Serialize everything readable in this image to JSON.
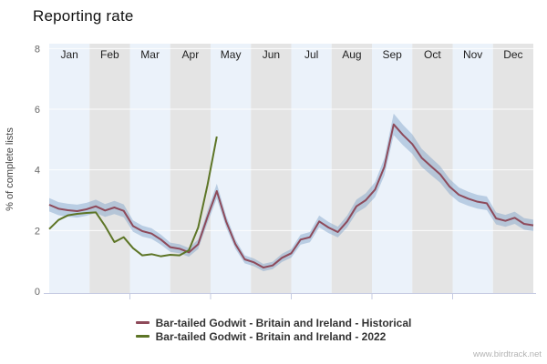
{
  "title": "Reporting rate",
  "legend": {
    "items": [
      {
        "label": "Bar-tailed Godwit - Britain and Ireland - Historical",
        "color": "#8e4a5a"
      },
      {
        "label": "Bar-tailed Godwit - Britain and Ireland - 2022",
        "color": "#5d7526"
      }
    ]
  },
  "watermark": "www.birdtrack.net",
  "colors": {
    "band_blue": "#ebf2fa",
    "band_gray": "#e4e4e4",
    "gridline": "rgba(255,255,255,0.85)",
    "axis_line": "#c5cbe2",
    "historical_line": "#8e4a5a",
    "confidence_band": "rgba(125,160,200,0.45)",
    "line_2022": "#5d7526"
  },
  "chart_data": {
    "type": "line",
    "title": "Reporting rate",
    "xlabel": "",
    "ylabel": "% of complete lists",
    "ylim": [
      0,
      8
    ],
    "yticks": [
      0,
      2,
      4,
      6,
      8
    ],
    "months": [
      "Jan",
      "Feb",
      "Mar",
      "Apr",
      "May",
      "Jun",
      "Jul",
      "Aug",
      "Sep",
      "Oct",
      "Nov",
      "Dec"
    ],
    "x_unit": "weeks 1-53 spanning Jan-Dec",
    "grid": true,
    "legend_position": "bottom",
    "series": [
      {
        "name": "Bar-tailed Godwit - Britain and Ireland - Historical",
        "color": "#8e4a5a",
        "confidence_band": true,
        "values": [
          2.85,
          2.72,
          2.67,
          2.64,
          2.7,
          2.8,
          2.66,
          2.76,
          2.65,
          2.15,
          1.98,
          1.9,
          1.7,
          1.45,
          1.4,
          1.28,
          1.55,
          2.45,
          3.3,
          2.3,
          1.55,
          1.05,
          0.95,
          0.78,
          0.85,
          1.1,
          1.25,
          1.7,
          1.78,
          2.3,
          2.1,
          1.95,
          2.3,
          2.8,
          3.0,
          3.35,
          4.1,
          5.5,
          5.15,
          4.85,
          4.4,
          4.12,
          3.85,
          3.45,
          3.18,
          3.05,
          2.95,
          2.9,
          2.4,
          2.32,
          2.42,
          2.22,
          2.17
        ]
      },
      {
        "name": "Bar-tailed Godwit - Britain and Ireland - 2022",
        "color": "#5d7526",
        "confidence_band": false,
        "values": [
          2.05,
          2.35,
          2.5,
          2.55,
          2.58,
          2.6,
          2.15,
          1.62,
          1.78,
          1.42,
          1.18,
          1.22,
          1.15,
          1.2,
          1.18,
          1.35,
          2.1,
          3.5,
          5.1
        ]
      }
    ]
  }
}
